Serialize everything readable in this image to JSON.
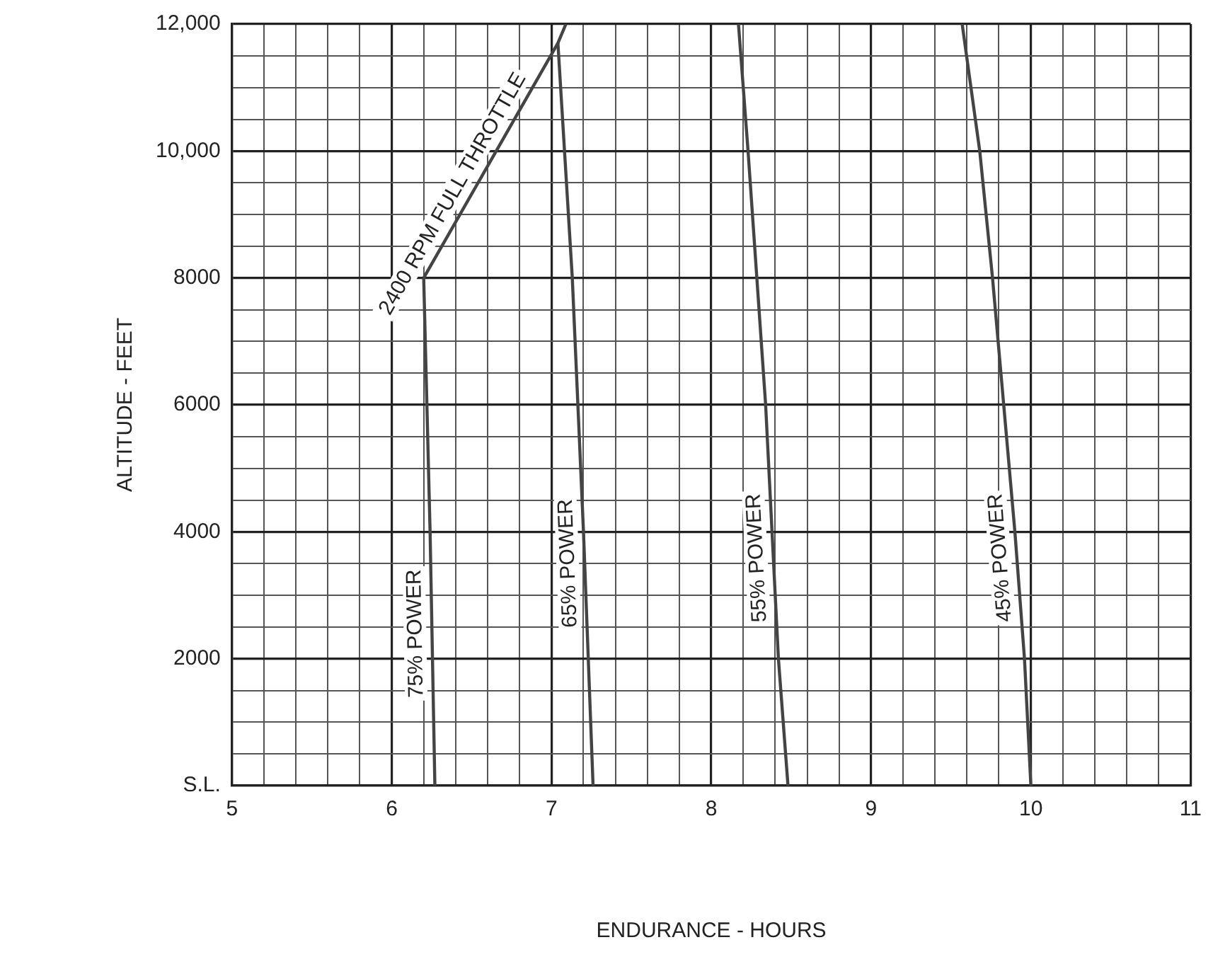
{
  "chart_data": {
    "type": "line",
    "xlabel": "ENDURANCE - HOURS",
    "ylabel": "ALTITUDE - FEET",
    "xlim": [
      5,
      11
    ],
    "ylim": [
      0,
      12000
    ],
    "xticks": [
      5,
      {
        "value": 5.2,
        "label": null
      },
      {
        "value": 5.4,
        "label": null
      },
      {
        "value": 5.6,
        "label": null
      },
      {
        "value": 5.8,
        "label": null
      },
      6,
      {
        "value": 6.2,
        "label": null
      },
      {
        "value": 6.4,
        "label": null
      },
      {
        "value": 6.6,
        "label": null
      },
      {
        "value": 6.8,
        "label": null
      },
      7,
      {
        "value": 7.2,
        "label": null
      },
      {
        "value": 7.4,
        "label": null
      },
      {
        "value": 7.6,
        "label": null
      },
      {
        "value": 7.8,
        "label": null
      },
      8,
      {
        "value": 8.2,
        "label": null
      },
      {
        "value": 8.4,
        "label": null
      },
      {
        "value": 8.6,
        "label": null
      },
      {
        "value": 8.8,
        "label": null
      },
      9,
      {
        "value": 9.2,
        "label": null
      },
      {
        "value": 9.4,
        "label": null
      },
      {
        "value": 9.6,
        "label": null
      },
      {
        "value": 9.8,
        "label": null
      },
      10,
      {
        "value": 10.2,
        "label": null
      },
      {
        "value": 10.4,
        "label": null
      },
      {
        "value": 10.6,
        "label": null
      },
      {
        "value": 10.8,
        "label": null
      },
      11
    ],
    "yticks": [
      {
        "value": 0,
        "label": "S.L."
      },
      {
        "value": 500,
        "label": null
      },
      {
        "value": 1000,
        "label": null
      },
      {
        "value": 1500,
        "label": null
      },
      2000,
      {
        "value": 2500,
        "label": null
      },
      {
        "value": 3000,
        "label": null
      },
      {
        "value": 3500,
        "label": null
      },
      4000,
      {
        "value": 4500,
        "label": null
      },
      {
        "value": 5000,
        "label": null
      },
      {
        "value": 5500,
        "label": null
      },
      6000,
      {
        "value": 6500,
        "label": null
      },
      {
        "value": 7000,
        "label": null
      },
      {
        "value": 7500,
        "label": null
      },
      8000,
      {
        "value": 8500,
        "label": null
      },
      {
        "value": 9000,
        "label": null
      },
      {
        "value": 9500,
        "label": null
      },
      {
        "value": 10000,
        "label": "10,000"
      },
      {
        "value": 10500,
        "label": null
      },
      {
        "value": 11000,
        "label": null
      },
      {
        "value": 11500,
        "label": null
      },
      {
        "value": 12000,
        "label": "12,000"
      }
    ],
    "grid": true,
    "legend": false,
    "series": [
      {
        "name": "75% POWER",
        "color": "#444444",
        "x": [
          6.27,
          6.24,
          6.2
        ],
        "values": [
          0,
          4000,
          8000
        ]
      },
      {
        "name": "65% POWER",
        "color": "#444444",
        "x": [
          7.26,
          7.2,
          7.13,
          7.04
        ],
        "values": [
          0,
          4000,
          8000,
          11700
        ]
      },
      {
        "name": "55% POWER",
        "color": "#444444",
        "x": [
          8.48,
          8.42,
          8.34,
          8.23,
          8.17
        ],
        "values": [
          0,
          2000,
          6000,
          10000,
          12000
        ]
      },
      {
        "name": "45% POWER",
        "color": "#444444",
        "x": [
          10.0,
          9.96,
          9.9,
          9.83,
          9.76,
          9.68,
          9.57
        ],
        "values": [
          0,
          2000,
          4000,
          6000,
          8000,
          10000,
          12000
        ]
      },
      {
        "name": "2400 RPM FULL THROTTLE",
        "color": "#444444",
        "x": [
          6.2,
          7.04,
          7.09
        ],
        "values": [
          8000,
          11700,
          12000
        ]
      }
    ]
  }
}
